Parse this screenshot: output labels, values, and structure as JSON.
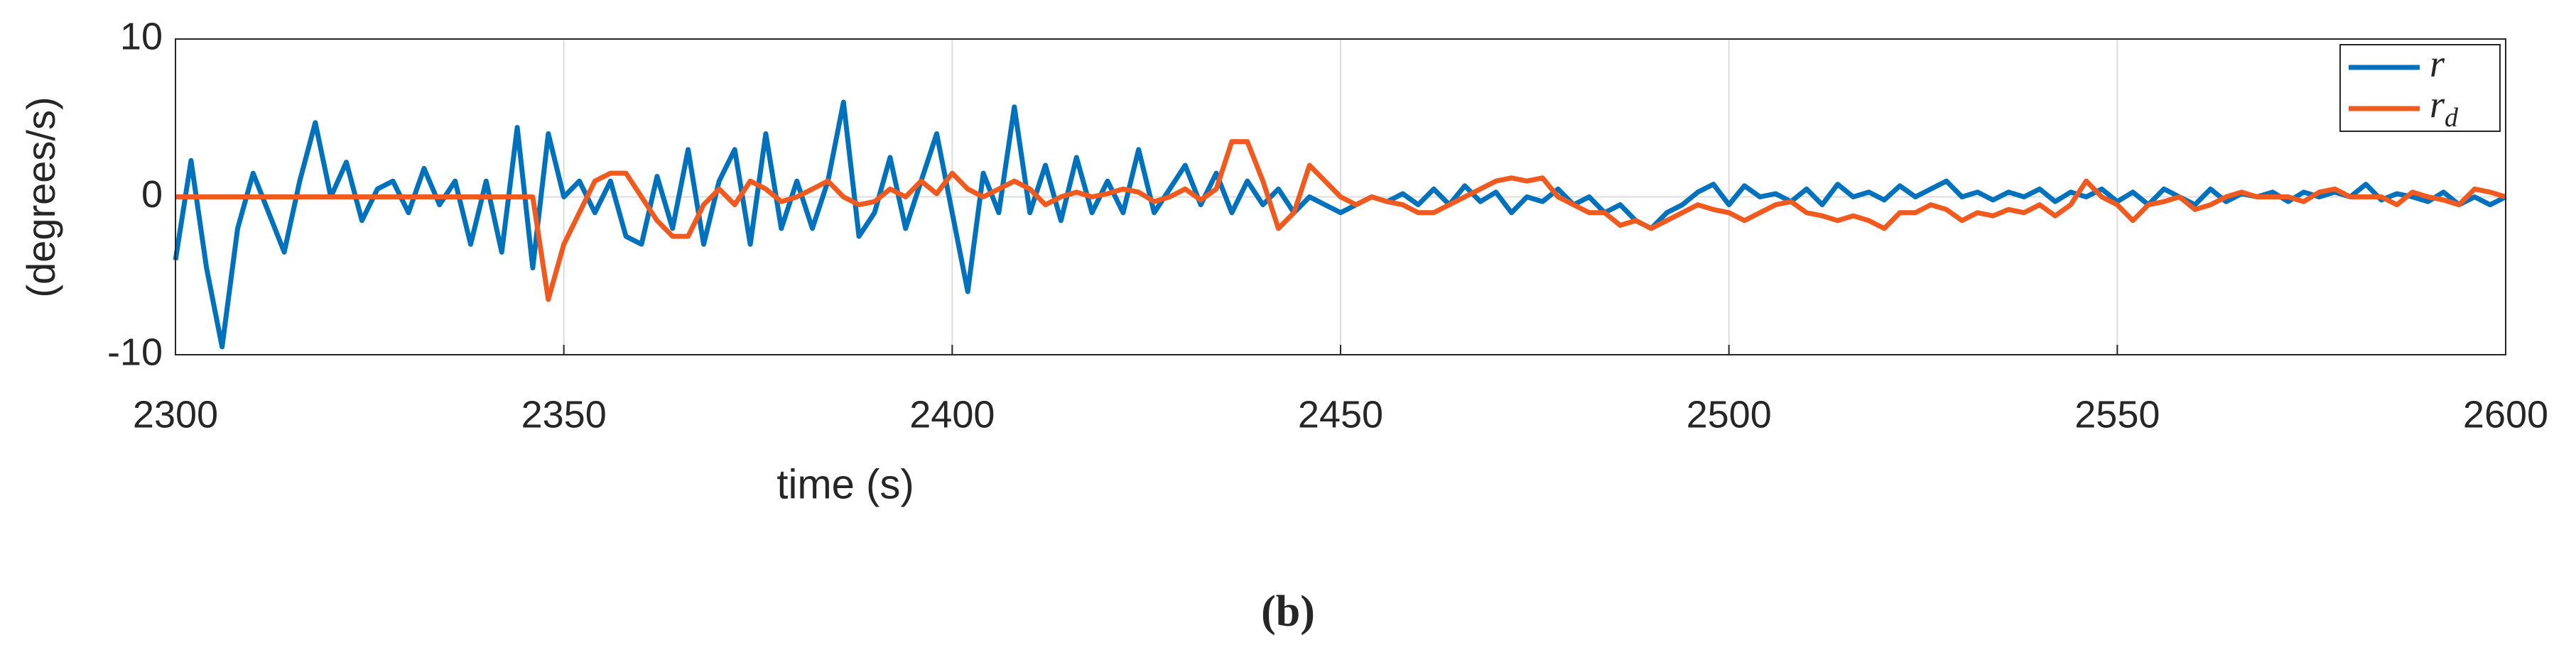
{
  "chart_data": {
    "type": "line",
    "xlabel": "time (s)",
    "ylabel": "(degrees/s)",
    "caption": "(b)",
    "xlim": [
      2300,
      2600
    ],
    "xticks": [
      2300,
      2350,
      2400,
      2450,
      2500,
      2550,
      2600
    ],
    "ylim": [
      -10,
      10
    ],
    "yticks": [
      -10,
      0,
      10
    ],
    "grid": true,
    "legend": "upper right",
    "x": [
      2300,
      2302,
      2304,
      2306,
      2308,
      2310,
      2312,
      2314,
      2316,
      2318,
      2320,
      2322,
      2324,
      2326,
      2328,
      2330,
      2332,
      2334,
      2336,
      2338,
      2340,
      2342,
      2344,
      2346,
      2348,
      2350,
      2352,
      2354,
      2356,
      2358,
      2360,
      2362,
      2364,
      2366,
      2368,
      2370,
      2372,
      2374,
      2376,
      2378,
      2380,
      2382,
      2384,
      2386,
      2388,
      2390,
      2392,
      2394,
      2396,
      2398,
      2400,
      2402,
      2404,
      2406,
      2408,
      2410,
      2412,
      2414,
      2416,
      2418,
      2420,
      2422,
      2424,
      2426,
      2428,
      2430,
      2432,
      2434,
      2436,
      2438,
      2440,
      2442,
      2444,
      2446,
      2448,
      2450,
      2452,
      2454,
      2456,
      2458,
      2460,
      2462,
      2464,
      2466,
      2468,
      2470,
      2472,
      2474,
      2476,
      2478,
      2480,
      2482,
      2484,
      2486,
      2488,
      2490,
      2492,
      2494,
      2496,
      2498,
      2500,
      2502,
      2504,
      2506,
      2508,
      2510,
      2512,
      2514,
      2516,
      2518,
      2520,
      2522,
      2524,
      2526,
      2528,
      2530,
      2532,
      2534,
      2536,
      2538,
      2540,
      2542,
      2544,
      2546,
      2548,
      2550,
      2552,
      2554,
      2556,
      2558,
      2560,
      2562,
      2564,
      2566,
      2568,
      2570,
      2572,
      2574,
      2576,
      2578,
      2580,
      2582,
      2584,
      2586,
      2588,
      2590,
      2592,
      2594,
      2596,
      2598,
      2600
    ],
    "series": [
      {
        "name": "r",
        "color": "#0072bd",
        "values": [
          -4,
          2.3,
          -4.5,
          -9.5,
          -2,
          1.5,
          -1,
          -3.5,
          1,
          4.7,
          0,
          2.2,
          -1.5,
          0.5,
          1,
          -1,
          1.8,
          -0.5,
          1,
          -3,
          1,
          -3.5,
          4.4,
          -4.5,
          4,
          0,
          1,
          -1,
          1,
          -2.5,
          -3,
          1.3,
          -2,
          3,
          -3,
          1,
          3,
          -3,
          4,
          -2,
          1,
          -2,
          1,
          6,
          -2.5,
          -1,
          2.5,
          -2,
          1,
          4,
          -1,
          -6,
          1.5,
          -1,
          5.7,
          -1,
          2,
          -1.5,
          2.5,
          -1,
          1,
          -1,
          3,
          -1,
          0.5,
          2,
          -0.5,
          1.5,
          -1,
          1,
          -0.5,
          0.5,
          -1,
          0,
          -0.5,
          -1,
          -0.5,
          0,
          -0.3,
          0.2,
          -0.5,
          0.5,
          -0.5,
          0.7,
          -0.3,
          0.3,
          -1,
          0,
          -0.3,
          0.5,
          -0.5,
          0,
          -1,
          -0.5,
          -1.5,
          -2,
          -1,
          -0.5,
          0.3,
          0.8,
          -0.5,
          0.7,
          0,
          0.2,
          -0.3,
          0.5,
          -0.5,
          0.8,
          0,
          0.3,
          -0.2,
          0.7,
          0,
          0.5,
          1,
          0,
          0.3,
          -0.2,
          0.3,
          0,
          0.5,
          -0.3,
          0.3,
          0,
          0.5,
          -0.3,
          0.3,
          -0.5,
          0.5,
          0,
          -0.5,
          0.5,
          -0.3,
          0.2,
          0,
          0.3,
          -0.3,
          0.3,
          0,
          0.3,
          0,
          0.8,
          -0.2,
          0.2,
          0,
          -0.3,
          0.3,
          -0.5,
          0,
          -0.5,
          0
        ]
      },
      {
        "name": "rd",
        "color": "#f05a1e",
        "values": [
          0,
          0,
          0,
          0,
          0,
          0,
          0,
          0,
          0,
          0,
          0,
          0,
          0,
          0,
          0,
          0,
          0,
          0,
          0,
          0,
          0,
          0,
          0,
          0,
          -6.5,
          -3,
          -1,
          1,
          1.5,
          1.5,
          0,
          -1.5,
          -2.5,
          -2.5,
          -0.5,
          0.5,
          -0.5,
          1,
          0.5,
          -0.3,
          0,
          0.5,
          1,
          0,
          -0.5,
          -0.3,
          0.5,
          0,
          1,
          0.2,
          1.5,
          0.5,
          0,
          0.5,
          1,
          0.5,
          -0.5,
          0,
          0.3,
          0,
          0.2,
          0.5,
          0.3,
          -0.3,
          0,
          0.5,
          -0.2,
          0.5,
          3.5,
          3.5,
          1,
          -2,
          -1,
          2,
          1,
          0,
          -0.5,
          0,
          -0.3,
          -0.5,
          -1,
          -1,
          -0.5,
          0,
          0.5,
          1,
          1.2,
          1,
          1.2,
          0,
          -0.5,
          -1,
          -1,
          -1.8,
          -1.5,
          -2,
          -1.5,
          -1,
          -0.5,
          -0.8,
          -1,
          -1.5,
          -1,
          -0.5,
          -0.3,
          -1,
          -1.2,
          -1.5,
          -1.2,
          -1.5,
          -2,
          -1,
          -1,
          -0.5,
          -0.8,
          -1.5,
          -1,
          -1.2,
          -0.8,
          -1,
          -0.5,
          -1.2,
          -0.5,
          1,
          0,
          -0.5,
          -1.5,
          -0.5,
          -0.3,
          0,
          -0.8,
          -0.5,
          0,
          0.3,
          0,
          0,
          0,
          -0.3,
          0.3,
          0.5,
          0,
          0,
          0,
          -0.5,
          0.3,
          0,
          -0.2,
          -0.5,
          0.5,
          0.3,
          0
        ]
      }
    ]
  }
}
